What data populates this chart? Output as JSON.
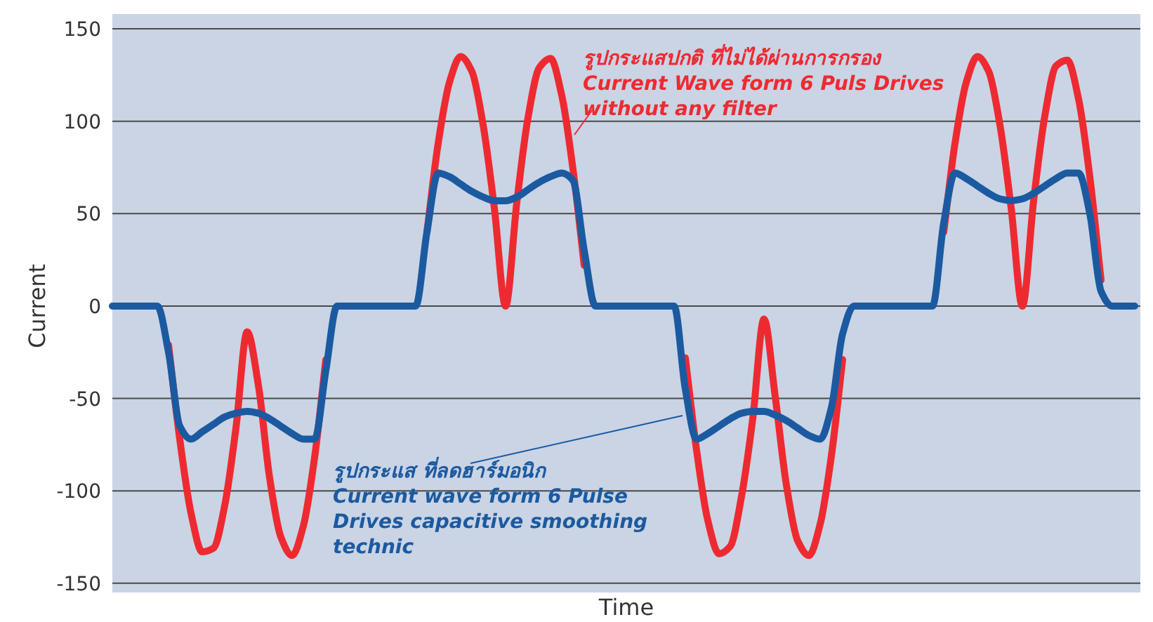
{
  "chart_data": {
    "type": "line",
    "xlabel": "Time",
    "ylabel": "Current",
    "categories": [
      null,
      null,
      null,
      null,
      null,
      null,
      null,
      null,
      null,
      null,
      null,
      null,
      null,
      null,
      null,
      null,
      null,
      null,
      null,
      null,
      null,
      null,
      null,
      null,
      null,
      null,
      null,
      null,
      null,
      null,
      null,
      null,
      null,
      null,
      null,
      null,
      null,
      null,
      null,
      null,
      null,
      null,
      null,
      null,
      null,
      null,
      null,
      null,
      null,
      null,
      null,
      null,
      null,
      null,
      null,
      null,
      null,
      null,
      null,
      null,
      null,
      null,
      null,
      null,
      null,
      null,
      null,
      null,
      null,
      null,
      null,
      null,
      null,
      null,
      null,
      null,
      null,
      null,
      null,
      null,
      null,
      null,
      null,
      null,
      null,
      null,
      null,
      null,
      null,
      null,
      null,
      null
    ],
    "series": [
      {
        "color": "#ee2a31",
        "values": [
          null,
          null,
          null,
          null,
          null,
          -21,
          -72,
          -112,
          -133,
          -131,
          -108,
          -66,
          -14,
          -43,
          -93,
          -125,
          -135,
          -119,
          -82,
          -29,
          null,
          null,
          null,
          null,
          null,
          null,
          null,
          null,
          40,
          88,
          121,
          135,
          127,
          98,
          53,
          0,
          56,
          102,
          129,
          134,
          114,
          74,
          22,
          null,
          null,
          null,
          null,
          null,
          null,
          null,
          null,
          -28,
          -78,
          -116,
          -134,
          -130,
          -103,
          -61,
          -7,
          -49,
          -97,
          -127,
          -135,
          -118,
          -81,
          -29,
          null,
          null,
          null,
          null,
          null,
          null,
          null,
          null,
          40,
          88,
          121,
          135,
          127,
          98,
          53,
          0,
          57,
          103,
          130,
          133,
          112,
          70,
          14,
          null,
          null,
          null
        ]
      },
      {
        "color": "#1b5aa0",
        "values": [
          0,
          0,
          0,
          0,
          0,
          -25,
          -65,
          -72,
          -68,
          -64,
          -60,
          -58,
          -57,
          -58,
          -61,
          -65,
          -69,
          -72,
          -72,
          -35,
          0,
          0,
          0,
          0,
          0,
          0,
          0,
          0,
          40,
          72,
          70,
          66,
          62,
          59,
          57,
          57,
          59,
          63,
          67,
          70,
          72,
          68,
          30,
          0,
          0,
          0,
          0,
          0,
          0,
          0,
          0,
          -45,
          -72,
          -69,
          -65,
          -61,
          -58,
          -57,
          -57,
          -59,
          -62,
          -66,
          -70,
          -72,
          -55,
          -15,
          0,
          0,
          0,
          0,
          0,
          0,
          0,
          0,
          45,
          72,
          69,
          65,
          61,
          58,
          57,
          58,
          61,
          65,
          69,
          72,
          72,
          50,
          8,
          0,
          0,
          0
        ]
      }
    ],
    "ylim": [
      -155,
      158
    ],
    "yticks": [
      -150,
      -100,
      -50,
      0,
      50,
      100,
      150
    ],
    "grid": "y",
    "marker": "none",
    "line_style": "solid",
    "annotations": [
      "รูปกระแสปกติ ที่ไม่ได้ผ่านการกรอง",
      "Current Wave form 6 Puls Drives without any filter",
      "รูปกระแส ที่ลดฮาร์มอนิก",
      "Current wave form 6 Pulse Drives capacitive smoothing technic"
    ]
  }
}
